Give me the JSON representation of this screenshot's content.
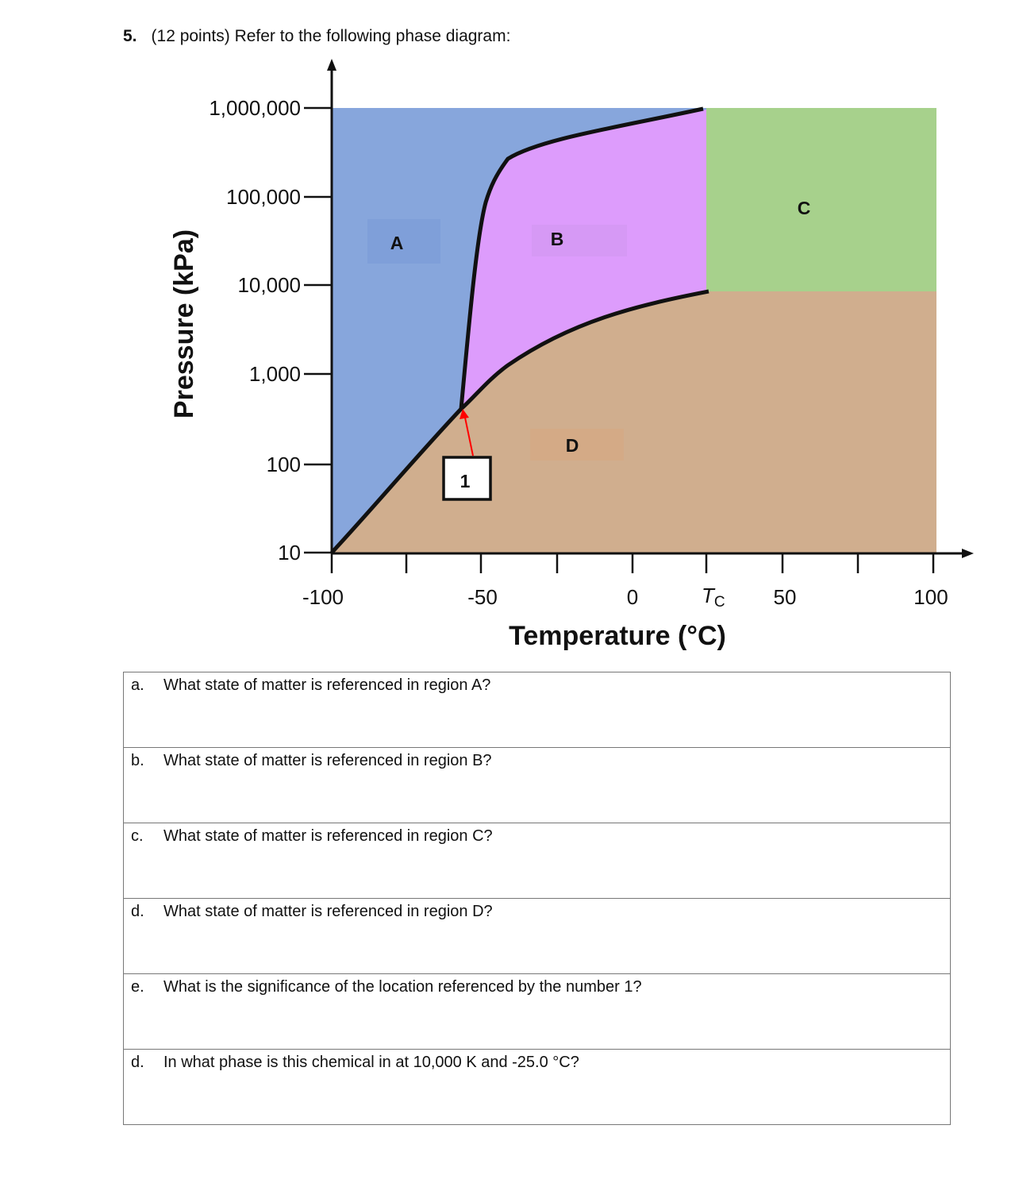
{
  "header": {
    "number": "5.",
    "text": "(12 points) Refer to the following phase diagram:"
  },
  "diagram": {
    "y_axis_title": "Pressure (kPa)",
    "x_axis_title": "Temperature (°C)",
    "y_ticks": [
      "1,000,000",
      "100,000",
      "10,000",
      "1,000",
      "100",
      "10"
    ],
    "x_ticks": [
      "-100",
      "-50",
      "0",
      "50",
      "100"
    ],
    "critical_temp_label": "T",
    "critical_temp_subscript": "C",
    "regions": {
      "a": {
        "label": "A",
        "color": "#87a6dc"
      },
      "b": {
        "label": "B",
        "color": "#dd9cfc"
      },
      "c": {
        "label": "C",
        "color": "#a7d18c"
      },
      "d": {
        "label": "D",
        "color": "#d0ae8e"
      }
    },
    "marker_label": "1",
    "marker_arrow_color": "#ff0000"
  },
  "questions": [
    {
      "letter": "a.",
      "text": "What state of matter is referenced in region A?"
    },
    {
      "letter": "b.",
      "text": "What state of matter is referenced in region B?"
    },
    {
      "letter": "c.",
      "text": "What state of matter is referenced in region C?"
    },
    {
      "letter": "d.",
      "text": "What state of matter is referenced in region D?"
    },
    {
      "letter": "e.",
      "text": "What is the significance of  the location referenced by the number 1?"
    },
    {
      "letter": "d.",
      "text": "In what phase is this chemical in at 10,000 K and -25.0 °C?"
    }
  ]
}
